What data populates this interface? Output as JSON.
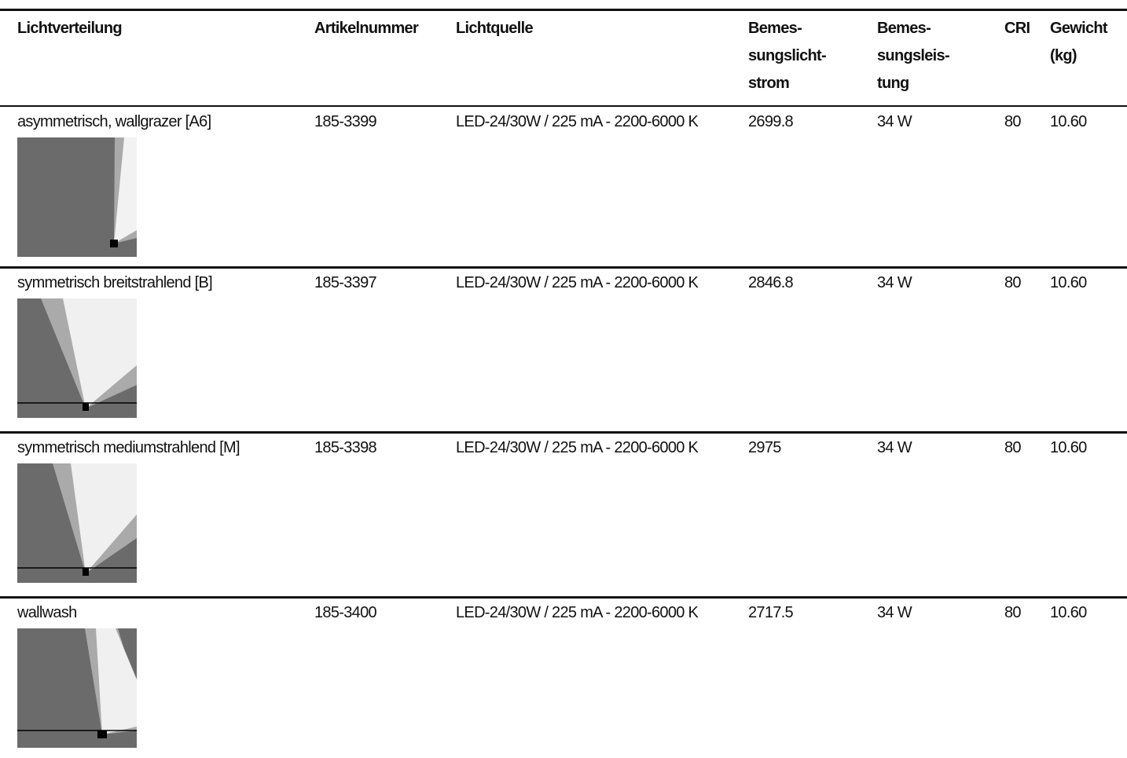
{
  "table": {
    "header": [
      [
        "Lichtverteilung"
      ],
      [
        "Artikelnummer"
      ],
      [
        "Lichtquelle"
      ],
      [
        "Bemes-",
        "sungslicht-",
        "strom"
      ],
      [
        "Bemes-",
        "sungsleis-",
        "tung"
      ],
      [
        "CRI"
      ],
      [
        "Gewicht",
        "(kg)"
      ]
    ],
    "rows": [
      [
        "asymmetrisch, wallgrazer [A6]",
        "185-3399",
        "LED-24/30W / 225 mA - 2200-6000 K",
        "2699.8",
        "34 W",
        "80",
        "10.60"
      ],
      [
        "symmetrisch breitstrahlend [B]",
        "185-3397",
        "LED-24/30W / 225 mA - 2200-6000 K",
        "2846.8",
        "34 W",
        "80",
        "10.60"
      ],
      [
        "symmetrisch mediumstrahlend [M]",
        "185-3398",
        "LED-24/30W / 225 mA - 2200-6000 K",
        "2975",
        "34 W",
        "80",
        "10.60"
      ],
      [
        "wallwash",
        "185-3400",
        "LED-24/30W / 225 mA - 2200-6000 K",
        "2717.5",
        "34 W",
        "80",
        "10.60"
      ]
    ]
  }
}
